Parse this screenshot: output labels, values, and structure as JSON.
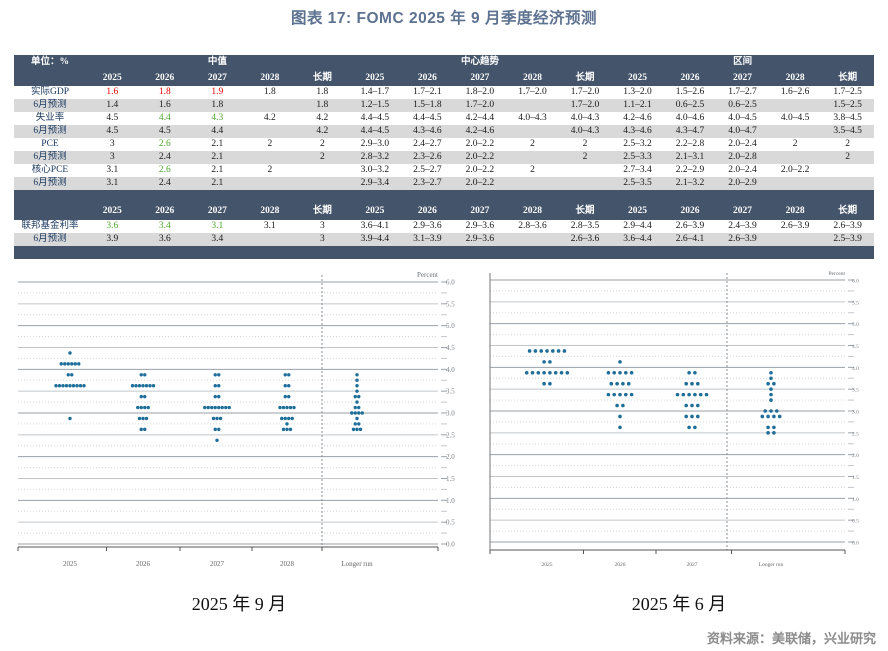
{
  "page": {
    "title": "图表 17: FOMC 2025 年 9 月季度经济预测",
    "source": "资料来源：美联储，兴业研究"
  },
  "colors": {
    "header_bg": "#44546a",
    "stripe": "#d9d9d9",
    "up_red": "#e60000",
    "down_green": "#4ea72e",
    "dot": "#1e6e99",
    "title": "#5d7290"
  },
  "table": {
    "unit_label": "单位：%",
    "group_headers": [
      "中值",
      "中心趋势",
      "区间"
    ],
    "years": [
      "2025",
      "2026",
      "2027",
      "2028",
      "长期"
    ],
    "sections": [
      {
        "rows": [
          {
            "label": "实际GDP",
            "june": false,
            "red": [
              0,
              1,
              2
            ],
            "green": [],
            "values": [
              "1.6",
              "1.8",
              "1.9",
              "1.8",
              "1.8",
              "1.4–1.7",
              "1.7–2.1",
              "1.8–2.0",
              "1.7–2.0",
              "1.7–2.0",
              "1.3–2.0",
              "1.5–2.6",
              "1.7–2.7",
              "1.6–2.6",
              "1.7–2.5"
            ]
          },
          {
            "label": "6月预测",
            "june": true,
            "red": [],
            "green": [],
            "values": [
              "1.4",
              "1.6",
              "1.8",
              "",
              "1.8",
              "1.2–1.5",
              "1.5–1.8",
              "1.7–2.0",
              "",
              "1.7–2.0",
              "1.1–2.1",
              "0.6–2.5",
              "0.6–2.5",
              "",
              "1.5–2.5"
            ]
          },
          {
            "label": "失业率",
            "june": false,
            "red": [],
            "green": [
              1,
              2
            ],
            "values": [
              "4.5",
              "4.4",
              "4.3",
              "4.2",
              "4.2",
              "4.4–4.5",
              "4.4–4.5",
              "4.2–4.4",
              "4.0–4.3",
              "4.0–4.3",
              "4.2–4.6",
              "4.0–4.6",
              "4.0–4.5",
              "4.0–4.5",
              "3.8–4.5"
            ]
          },
          {
            "label": "6月预测",
            "june": true,
            "red": [],
            "green": [],
            "values": [
              "4.5",
              "4.5",
              "4.4",
              "",
              "4.2",
              "4.4–4.5",
              "4.3–4.6",
              "4.2–4.6",
              "",
              "4.0–4.3",
              "4.3–4.6",
              "4.3–4.7",
              "4.0–4.7",
              "",
              "3.5–4.5"
            ]
          },
          {
            "label": "PCE",
            "june": false,
            "red": [],
            "green": [
              1
            ],
            "values": [
              "3",
              "2.6",
              "2.1",
              "2",
              "2",
              "2.9–3.0",
              "2.4–2.7",
              "2.0–2.2",
              "2",
              "2",
              "2.5–3.2",
              "2.2–2.8",
              "2.0–2.4",
              "2",
              "2"
            ]
          },
          {
            "label": "6月预测",
            "june": true,
            "red": [],
            "green": [],
            "values": [
              "3",
              "2.4",
              "2.1",
              "",
              "2",
              "2.8–3.2",
              "2.3–2.6",
              "2.0–2.2",
              "",
              "2",
              "2.5–3.3",
              "2.1–3.1",
              "2.0–2.8",
              "",
              "2"
            ]
          },
          {
            "label": "核心PCE",
            "june": false,
            "red": [],
            "green": [
              1
            ],
            "values": [
              "3.1",
              "2.6",
              "2.1",
              "2",
              "",
              "3.0–3.2",
              "2.5–2.7",
              "2.0–2.2",
              "2",
              "",
              "2.7–3.4",
              "2.2–2.9",
              "2.0–2.4",
              "2.0–2.2",
              ""
            ]
          },
          {
            "label": "6月预测",
            "june": true,
            "red": [],
            "green": [],
            "values": [
              "3.1",
              "2.4",
              "2.1",
              "",
              "",
              "2.9–3.4",
              "2.3–2.7",
              "2.0–2.2",
              "",
              "",
              "2.5–3.5",
              "2.1–3.2",
              "2.0–2.9",
              "",
              ""
            ]
          }
        ]
      },
      {
        "rows": [
          {
            "label": "联邦基金利率",
            "june": false,
            "red": [],
            "green": [
              0,
              1,
              2
            ],
            "values": [
              "3.6",
              "3.4",
              "3.1",
              "3.1",
              "3",
              "3.6–4.1",
              "2.9–3.6",
              "2.9–3.6",
              "2.8–3.6",
              "2.8–3.5",
              "2.9–4.4",
              "2.6–3.9",
              "2.4–3.9",
              "2.6–3.9",
              "2.6–3.9"
            ]
          },
          {
            "label": "6月预测",
            "june": true,
            "red": [],
            "green": [],
            "values": [
              "3.9",
              "3.6",
              "3.4",
              "",
              "3",
              "3.9–4.4",
              "3.1–3.9",
              "2.9–3.6",
              "",
              "2.6–3.6",
              "3.6–4.4",
              "2.6–4.1",
              "2.6–3.9",
              "",
              "2.5–3.9"
            ]
          }
        ]
      }
    ]
  },
  "chart_data": [
    {
      "type": "scatter",
      "title": "2025 年 9 月",
      "ylabel": "Percent",
      "y_min": 0,
      "y_max": 6,
      "y_step": 0.5,
      "grid": true,
      "categories": [
        "2025",
        "2026",
        "2027",
        "2028",
        "Longer run"
      ],
      "dots": [
        {
          "category": "2025",
          "levels": [
            [
              4.375,
              1
            ],
            [
              4.125,
              6
            ],
            [
              3.875,
              2
            ],
            [
              3.625,
              9
            ],
            [
              2.875,
              1
            ]
          ]
        },
        {
          "category": "2026",
          "levels": [
            [
              3.875,
              2
            ],
            [
              3.625,
              7
            ],
            [
              3.375,
              2
            ],
            [
              3.125,
              4
            ],
            [
              2.875,
              3
            ],
            [
              2.625,
              2
            ]
          ]
        },
        {
          "category": "2027",
          "levels": [
            [
              3.875,
              2
            ],
            [
              3.625,
              2
            ],
            [
              3.375,
              2
            ],
            [
              3.125,
              8
            ],
            [
              2.875,
              3
            ],
            [
              2.625,
              2
            ],
            [
              2.375,
              1
            ]
          ]
        },
        {
          "category": "2028",
          "levels": [
            [
              3.875,
              2
            ],
            [
              3.625,
              2
            ],
            [
              3.375,
              2
            ],
            [
              3.125,
              5
            ],
            [
              2.875,
              4
            ],
            [
              2.75,
              1
            ],
            [
              2.625,
              3
            ]
          ]
        },
        {
          "category": "Longer run",
          "levels": [
            [
              3.875,
              1
            ],
            [
              3.75,
              1
            ],
            [
              3.625,
              1
            ],
            [
              3.5,
              1
            ],
            [
              3.375,
              2
            ],
            [
              3.25,
              1
            ],
            [
              3.125,
              2
            ],
            [
              3.0,
              4
            ],
            [
              2.875,
              1
            ],
            [
              2.75,
              2
            ],
            [
              2.625,
              3
            ]
          ]
        }
      ]
    },
    {
      "type": "scatter",
      "title": "2025 年 6 月",
      "ylabel": "Percent",
      "y_min": 0,
      "y_max": 6,
      "y_step": 0.5,
      "grid": true,
      "categories": [
        "2025",
        "2026",
        "2027",
        "Longer run"
      ],
      "dots": [
        {
          "category": "2025",
          "levels": [
            [
              4.375,
              7
            ],
            [
              4.125,
              2
            ],
            [
              3.875,
              8
            ],
            [
              3.625,
              2
            ]
          ]
        },
        {
          "category": "2026",
          "levels": [
            [
              4.125,
              1
            ],
            [
              3.875,
              5
            ],
            [
              3.625,
              4
            ],
            [
              3.375,
              5
            ],
            [
              3.125,
              2
            ],
            [
              2.875,
              1
            ],
            [
              2.625,
              1
            ]
          ]
        },
        {
          "category": "2027",
          "levels": [
            [
              3.875,
              2
            ],
            [
              3.625,
              3
            ],
            [
              3.375,
              6
            ],
            [
              3.125,
              3
            ],
            [
              2.875,
              3
            ],
            [
              2.625,
              2
            ]
          ]
        },
        {
          "category": "Longer run",
          "levels": [
            [
              3.875,
              1
            ],
            [
              3.75,
              1
            ],
            [
              3.625,
              2
            ],
            [
              3.5,
              1
            ],
            [
              3.375,
              1
            ],
            [
              3.25,
              1
            ],
            [
              3.0,
              3
            ],
            [
              2.875,
              4
            ],
            [
              2.625,
              2
            ],
            [
              2.5,
              2
            ]
          ]
        }
      ]
    }
  ]
}
